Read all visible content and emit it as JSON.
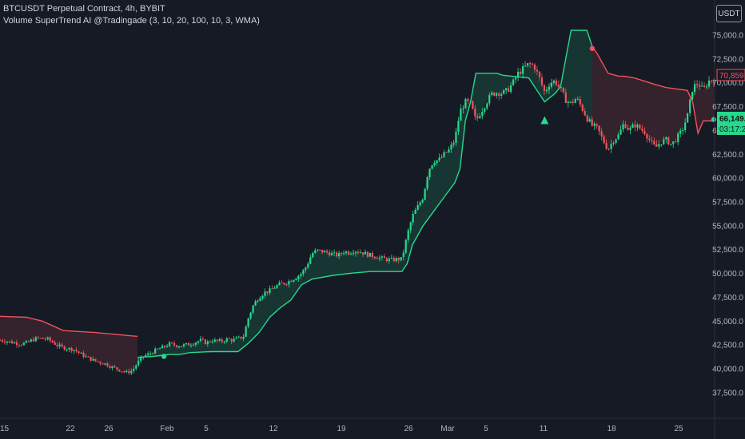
{
  "legend": {
    "symbol_line": "BTCUSDT Perpetual Contract, 4h, BYBIT",
    "indicator_line": "Volume SuperTrend AI @Tradingade (3, 10, 20, 100, 10, 3, WMA)"
  },
  "currency_button": "USDT",
  "price_labels": {
    "upper": "70,859.7",
    "last_price": "66,149.2",
    "countdown": "03:17:24"
  },
  "colors": {
    "background": "#161a25",
    "bull": "#26d98c",
    "bear": "#f0535c",
    "bull_fill": "rgba(38,217,140,0.14)",
    "bear_fill": "rgba(240,83,92,0.14)"
  },
  "chart_data": {
    "type": "line",
    "y_axis_ticks": [
      "75,000.0",
      "72,500.0",
      "70,000.0",
      "67,500.0",
      "65,000.0",
      "62,500.0",
      "60,000.0",
      "57,500.0",
      "55,000.0",
      "52,500.0",
      "50,000.0",
      "47,500.0",
      "45,000.0",
      "42,500.0",
      "40,000.0",
      "37,500.0"
    ],
    "x_axis_ticks": [
      "15",
      "22",
      "26",
      "Feb",
      "5",
      "12",
      "19",
      "26",
      "Mar",
      "5",
      "11",
      "18",
      "25"
    ],
    "ylim": [
      36500,
      77500
    ],
    "price": {
      "name": "",
      "points": [
        [
          0,
          43000
        ],
        [
          2,
          42800
        ],
        [
          4,
          42600
        ],
        [
          5,
          42700
        ],
        [
          6,
          43000
        ],
        [
          7,
          43200
        ],
        [
          9,
          43100
        ],
        [
          11,
          42400
        ],
        [
          12,
          42200
        ],
        [
          14,
          42000
        ],
        [
          16,
          41300
        ],
        [
          18,
          40800
        ],
        [
          20,
          40500
        ],
        [
          21,
          40200
        ],
        [
          22,
          40000
        ],
        [
          24,
          39600
        ],
        [
          25,
          39800
        ],
        [
          26,
          40600
        ],
        [
          27,
          41300
        ],
        [
          28,
          41500
        ],
        [
          29,
          41800
        ],
        [
          30,
          42100
        ],
        [
          31,
          42300
        ],
        [
          32,
          42600
        ],
        [
          33,
          42500
        ],
        [
          34,
          42400
        ],
        [
          35,
          42500
        ],
        [
          36,
          42600
        ],
        [
          37,
          42800
        ],
        [
          38,
          43000
        ],
        [
          39,
          42700
        ],
        [
          40,
          43000
        ],
        [
          41,
          42900
        ],
        [
          42,
          42900
        ],
        [
          43,
          43100
        ],
        [
          44,
          43000
        ],
        [
          45,
          43200
        ],
        [
          46,
          43300
        ],
        [
          47,
          45400
        ],
        [
          48,
          46800
        ],
        [
          49,
          47500
        ],
        [
          50,
          48000
        ],
        [
          51,
          48200
        ],
        [
          52,
          48600
        ],
        [
          53,
          48900
        ],
        [
          54,
          49000
        ],
        [
          55,
          49300
        ],
        [
          56,
          49600
        ],
        [
          57,
          50000
        ],
        [
          58,
          50800
        ],
        [
          59,
          52100
        ],
        [
          60,
          52400
        ],
        [
          61,
          52300
        ],
        [
          62,
          52200
        ],
        [
          63,
          52000
        ],
        [
          64,
          51900
        ],
        [
          65,
          52300
        ],
        [
          66,
          52200
        ],
        [
          67,
          52400
        ],
        [
          68,
          52300
        ],
        [
          69,
          52100
        ],
        [
          70,
          51900
        ],
        [
          71,
          51800
        ],
        [
          72,
          51600
        ],
        [
          73,
          51500
        ],
        [
          74,
          51400
        ],
        [
          75,
          51500
        ],
        [
          76,
          51500
        ],
        [
          77,
          54000
        ],
        [
          78,
          56000
        ],
        [
          79,
          57000
        ],
        [
          80,
          58000
        ],
        [
          81,
          60800
        ],
        [
          82,
          61800
        ],
        [
          83,
          61900
        ],
        [
          84,
          62500
        ],
        [
          85,
          63000
        ],
        [
          86,
          64000
        ],
        [
          87,
          67000
        ],
        [
          88,
          68000
        ],
        [
          89,
          67800
        ],
        [
          90,
          66000
        ],
        [
          91,
          67000
        ],
        [
          92,
          68000
        ],
        [
          93,
          68800
        ],
        [
          94,
          69000
        ],
        [
          95,
          68900
        ],
        [
          96,
          69200
        ],
        [
          97,
          70000
        ],
        [
          98,
          71000
        ],
        [
          99,
          71500
        ],
        [
          100,
          72000
        ],
        [
          101,
          71800
        ],
        [
          102,
          70500
        ],
        [
          103,
          69000
        ],
        [
          104,
          70000
        ],
        [
          105,
          70200
        ],
        [
          106,
          69300
        ],
        [
          107,
          68200
        ],
        [
          108,
          67800
        ],
        [
          109,
          68400
        ],
        [
          110,
          67400
        ],
        [
          111,
          66300
        ],
        [
          112,
          65500
        ],
        [
          113,
          65200
        ],
        [
          114,
          64000
        ],
        [
          115,
          63000
        ],
        [
          116,
          64000
        ],
        [
          117,
          64500
        ],
        [
          118,
          65800
        ],
        [
          119,
          65000
        ],
        [
          120,
          65600
        ],
        [
          121,
          65200
        ],
        [
          122,
          64800
        ],
        [
          123,
          63800
        ],
        [
          124,
          63200
        ],
        [
          125,
          63800
        ],
        [
          126,
          64000
        ],
        [
          127,
          63500
        ],
        [
          128,
          64200
        ],
        [
          129,
          65000
        ],
        [
          130,
          66500
        ],
        [
          131,
          69500
        ],
        [
          132,
          70000
        ],
        [
          133,
          69200
        ],
        [
          134,
          70200
        ],
        [
          135,
          70300
        ]
      ]
    },
    "supertrend": {
      "name": "",
      "bear_segment_1": [
        [
          0,
          45500
        ],
        [
          5,
          45400
        ],
        [
          8,
          45000
        ],
        [
          12,
          44000
        ],
        [
          18,
          43800
        ],
        [
          26,
          43400
        ]
      ],
      "bull_segment": [
        [
          26,
          41200
        ],
        [
          29,
          41300
        ],
        [
          32,
          41500
        ],
        [
          34,
          41500
        ],
        [
          36,
          41700
        ],
        [
          40,
          41800
        ],
        [
          45,
          41800
        ],
        [
          47,
          42700
        ],
        [
          49,
          43800
        ],
        [
          51,
          45400
        ],
        [
          53,
          46400
        ],
        [
          55,
          47200
        ],
        [
          57,
          48800
        ],
        [
          59,
          49400
        ],
        [
          63,
          49800
        ],
        [
          66,
          50000
        ],
        [
          70,
          50200
        ],
        [
          76,
          50200
        ],
        [
          77,
          51000
        ],
        [
          78,
          53000
        ],
        [
          80,
          55000
        ],
        [
          82,
          56500
        ],
        [
          84,
          58000
        ],
        [
          86,
          59500
        ],
        [
          87,
          61000
        ],
        [
          88,
          66000
        ],
        [
          89,
          68000
        ],
        [
          90,
          71000
        ],
        [
          94,
          71000
        ],
        [
          95,
          70800
        ],
        [
          100,
          70500
        ],
        [
          103,
          68000
        ],
        [
          105,
          68900
        ],
        [
          106,
          69600
        ],
        [
          108,
          75500
        ],
        [
          111,
          75500
        ],
        [
          112,
          73800
        ]
      ],
      "bear_segment_2": [
        [
          112,
          73800
        ],
        [
          113,
          73000
        ],
        [
          115,
          71000
        ],
        [
          117,
          70700
        ],
        [
          118,
          70700
        ],
        [
          120,
          70500
        ],
        [
          124,
          69800
        ],
        [
          126,
          69500
        ],
        [
          130,
          69200
        ],
        [
          131,
          68000
        ],
        [
          132,
          64700
        ],
        [
          133,
          66000
        ],
        [
          135,
          66000
        ]
      ]
    },
    "signals": [
      {
        "type": "bull-dot",
        "x": 31,
        "y": 41300
      },
      {
        "type": "bull-triangle",
        "x": 103,
        "y": 66000
      },
      {
        "type": "bear-dot",
        "x": 112,
        "y": 73600
      },
      {
        "type": "bull-dot",
        "x": 135,
        "y": 66149
      }
    ]
  }
}
